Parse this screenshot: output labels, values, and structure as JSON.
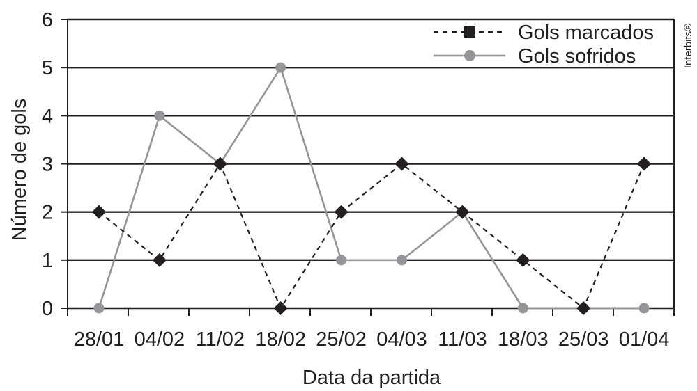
{
  "chart_data": {
    "type": "line",
    "categories": [
      "28/01",
      "04/02",
      "11/02",
      "18/02",
      "25/02",
      "04/03",
      "11/03",
      "18/03",
      "25/03",
      "01/04"
    ],
    "series": [
      {
        "name": "Gols marcados",
        "values": [
          2,
          1,
          3,
          0,
          2,
          3,
          2,
          1,
          0,
          3
        ],
        "color": "#231f20",
        "line_style": "dashed",
        "marker": "diamond"
      },
      {
        "name": "Gols sofridos",
        "values": [
          0,
          4,
          3,
          5,
          1,
          1,
          2,
          0,
          0,
          0
        ],
        "color": "#939598",
        "line_style": "solid",
        "marker": "circle"
      }
    ],
    "xlabel": "Data da partida",
    "ylabel": "Número de gols",
    "ylim": [
      0,
      6
    ],
    "yticks": [
      "0",
      "1",
      "2",
      "3",
      "4",
      "5",
      "6"
    ],
    "grid": "horizontal",
    "legend_position": "top-right"
  },
  "credit": "Interbits®"
}
